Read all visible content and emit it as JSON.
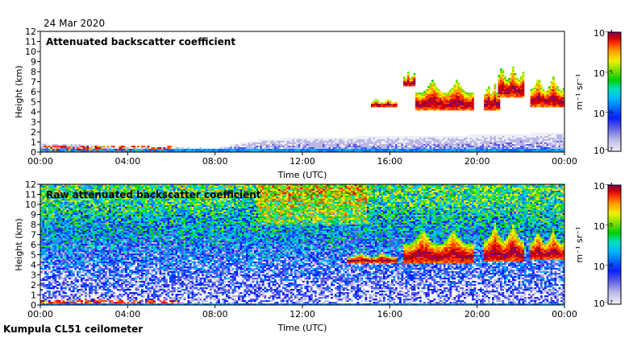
{
  "date": "24 Mar 2020",
  "footer": "Kumpula CL51 ceilometer",
  "colors": {
    "colormap": [
      "#efeff8",
      "#b8b8e6",
      "#5a5ae6",
      "#0a1eff",
      "#0068ff",
      "#00b4ff",
      "#00e0c0",
      "#00d000",
      "#80e000",
      "#f0f000",
      "#ffa000",
      "#ff4000",
      "#d00000",
      "#800060"
    ],
    "background": "#ffffff",
    "axis": "#000000"
  },
  "chart_data": [
    {
      "type": "heatmap",
      "title": "Attenuated backscatter coefficient",
      "xlabel": "Time (UTC)",
      "ylabel": "Height (km)",
      "x_ticks": [
        "00:00",
        "04:00",
        "08:00",
        "12:00",
        "16:00",
        "20:00",
        "00:00"
      ],
      "xlim_hours": [
        0,
        24
      ],
      "y_ticks": [
        "0",
        "1",
        "2",
        "3",
        "4",
        "5",
        "6",
        "7",
        "8",
        "9",
        "10",
        "11",
        "12"
      ],
      "ylim_km": [
        0,
        12
      ],
      "colorbar": {
        "label": "m⁻¹ sr⁻¹",
        "scale": "log",
        "range": [
          1e-07,
          0.0001
        ],
        "tick_labels": [
          "10⁻⁷",
          "10⁻⁶",
          "10⁻⁵",
          "10⁻⁴"
        ]
      },
      "features": {
        "boundary_layer_top_km": [
          0.9,
          0.8,
          0.5,
          0.5,
          0.45,
          1.2,
          1.5,
          1.5,
          1.6,
          1.6,
          1.7,
          1.8,
          2.0
        ],
        "clouds": [
          {
            "t_start_h": 15.1,
            "t_end_h": 16.3,
            "base_km": 4.5,
            "top_km": 5.3
          },
          {
            "t_start_h": 16.6,
            "t_end_h": 17.2,
            "base_km": 6.5,
            "top_km": 8.0
          },
          {
            "t_start_h": 17.2,
            "t_end_h": 19.8,
            "base_km": 4.2,
            "top_km": 7.2
          },
          {
            "t_start_h": 20.3,
            "t_end_h": 21.0,
            "base_km": 4.2,
            "top_km": 7.0
          },
          {
            "t_start_h": 21.0,
            "t_end_h": 22.2,
            "base_km": 5.5,
            "top_km": 8.6
          },
          {
            "t_start_h": 22.4,
            "t_end_h": 24.0,
            "base_km": 4.5,
            "top_km": 7.5
          }
        ]
      }
    },
    {
      "type": "heatmap",
      "title": "Raw attenuated backscatter coefficient",
      "xlabel": "Time (UTC)",
      "ylabel": "Height (km)",
      "x_ticks": [
        "00:00",
        "04:00",
        "08:00",
        "12:00",
        "16:00",
        "20:00",
        "00:00"
      ],
      "xlim_hours": [
        0,
        24
      ],
      "y_ticks": [
        "0",
        "1",
        "2",
        "3",
        "4",
        "5",
        "6",
        "7",
        "8",
        "9",
        "10",
        "11",
        "12"
      ],
      "ylim_km": [
        0,
        12
      ],
      "colorbar": {
        "label": "m⁻¹ sr⁻¹",
        "scale": "log",
        "range": [
          1e-07,
          0.0001
        ],
        "tick_labels": [
          "10⁻⁷",
          "10⁻⁶",
          "10⁻⁵",
          "10⁻⁴"
        ]
      },
      "features": {
        "noisy_background": true,
        "clouds": [
          {
            "t_start_h": 14.0,
            "t_end_h": 16.3,
            "base_km": 4.2,
            "top_km": 5.2
          },
          {
            "t_start_h": 16.6,
            "t_end_h": 19.8,
            "base_km": 4.2,
            "top_km": 7.5
          },
          {
            "t_start_h": 20.3,
            "t_end_h": 22.2,
            "base_km": 4.3,
            "top_km": 8.2
          },
          {
            "t_start_h": 22.4,
            "t_end_h": 24.0,
            "base_km": 4.5,
            "top_km": 7.5
          }
        ]
      }
    }
  ]
}
